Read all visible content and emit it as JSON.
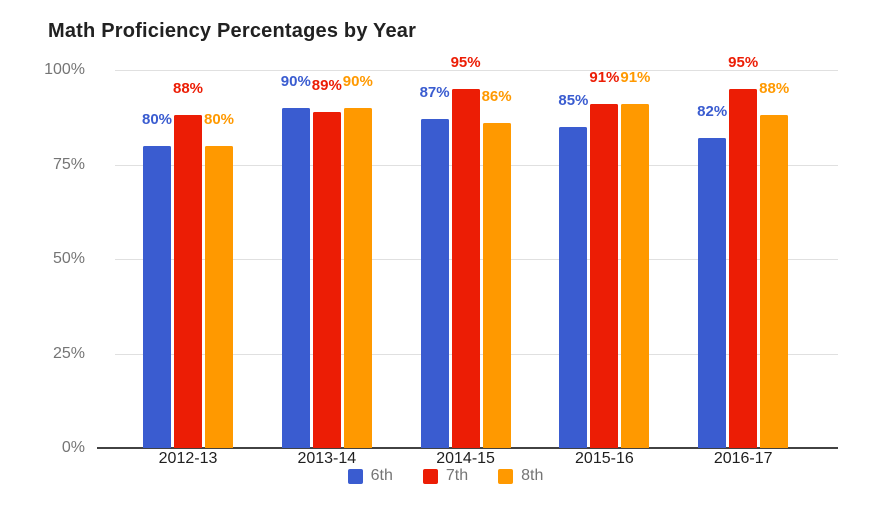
{
  "chart_data": {
    "type": "bar",
    "title": "Math Proficiency Percentages by Year",
    "categories": [
      "2012-13",
      "2013-14",
      "2014-15",
      "2015-16",
      "2016-17"
    ],
    "series": [
      {
        "name": "6th",
        "color": "#3A5CD0",
        "values": [
          80,
          90,
          87,
          85,
          82
        ]
      },
      {
        "name": "7th",
        "color": "#EC1D05",
        "values": [
          88,
          89,
          95,
          91,
          95
        ]
      },
      {
        "name": "8th",
        "color": "#FF9900",
        "values": [
          80,
          90,
          86,
          91,
          88
        ]
      }
    ],
    "data_label_suffix": "%",
    "y_ticks": [
      {
        "value": 0,
        "label": "0%"
      },
      {
        "value": 25,
        "label": "25%"
      },
      {
        "value": 50,
        "label": "50%"
      },
      {
        "value": 75,
        "label": "75%"
      },
      {
        "value": 100,
        "label": "100%"
      }
    ],
    "ylim": [
      0,
      100
    ],
    "xlabel": "",
    "ylabel": "",
    "grid": true,
    "legend_position": "bottom",
    "colors": {
      "grid": "#e0e0e0",
      "axis_line": "#424242",
      "tick_text": "#757575",
      "category_text": "#1f1f1f",
      "legend_text": "#757575",
      "title_text": "#212121",
      "background": "#ffffff"
    }
  }
}
